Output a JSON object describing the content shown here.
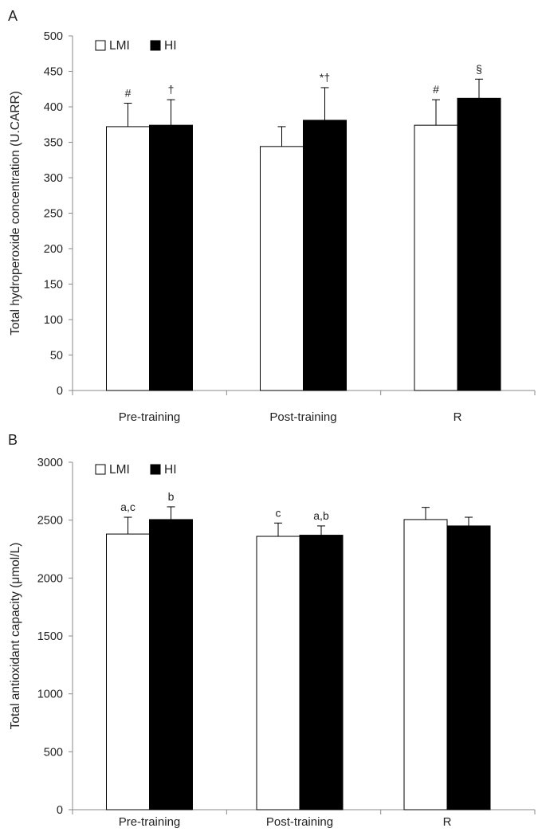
{
  "colors": {
    "LMI_fill": "#ffffff",
    "HI_fill": "#000000",
    "stroke": "#000000",
    "axis": "#888888"
  },
  "chart_data": [
    {
      "panel": "A",
      "type": "bar",
      "ylabel": "Total hydroperoxide concentration (U.CARR)",
      "ylim": [
        0,
        500
      ],
      "yticks": [
        0,
        50,
        100,
        150,
        200,
        250,
        300,
        350,
        400,
        450,
        500
      ],
      "categories": [
        "Pre-training",
        "Post-training",
        "R"
      ],
      "legend": {
        "placement": "top-left",
        "orientation": "horizontal"
      },
      "series": [
        {
          "name": "LMI",
          "color": "#ffffff",
          "values": [
            372,
            344,
            374
          ],
          "errors": [
            33,
            28,
            36
          ],
          "annotations": [
            "#",
            "",
            "#"
          ]
        },
        {
          "name": "HI",
          "color": "#000000",
          "values": [
            374,
            381,
            412
          ],
          "errors": [
            36,
            46,
            27
          ],
          "annotations": [
            "†",
            "*†",
            "§"
          ]
        }
      ]
    },
    {
      "panel": "B",
      "type": "bar",
      "ylabel": "Total antioxidant capacity (μmol/L)",
      "ylim": [
        0,
        3000
      ],
      "yticks": [
        0,
        500,
        1000,
        1500,
        2000,
        2500,
        3000
      ],
      "categories": [
        "Pre-training",
        "Post-training",
        "R"
      ],
      "legend": {
        "placement": "top-left",
        "orientation": "horizontal"
      },
      "series": [
        {
          "name": "LMI",
          "color": "#ffffff",
          "values": [
            2380,
            2360,
            2505
          ],
          "errors": [
            145,
            115,
            105
          ],
          "annotations": [
            "a,c",
            "c",
            ""
          ]
        },
        {
          "name": "HI",
          "color": "#000000",
          "values": [
            2505,
            2370,
            2450
          ],
          "errors": [
            110,
            80,
            75
          ],
          "annotations": [
            "b",
            "a,b",
            ""
          ]
        }
      ]
    }
  ]
}
